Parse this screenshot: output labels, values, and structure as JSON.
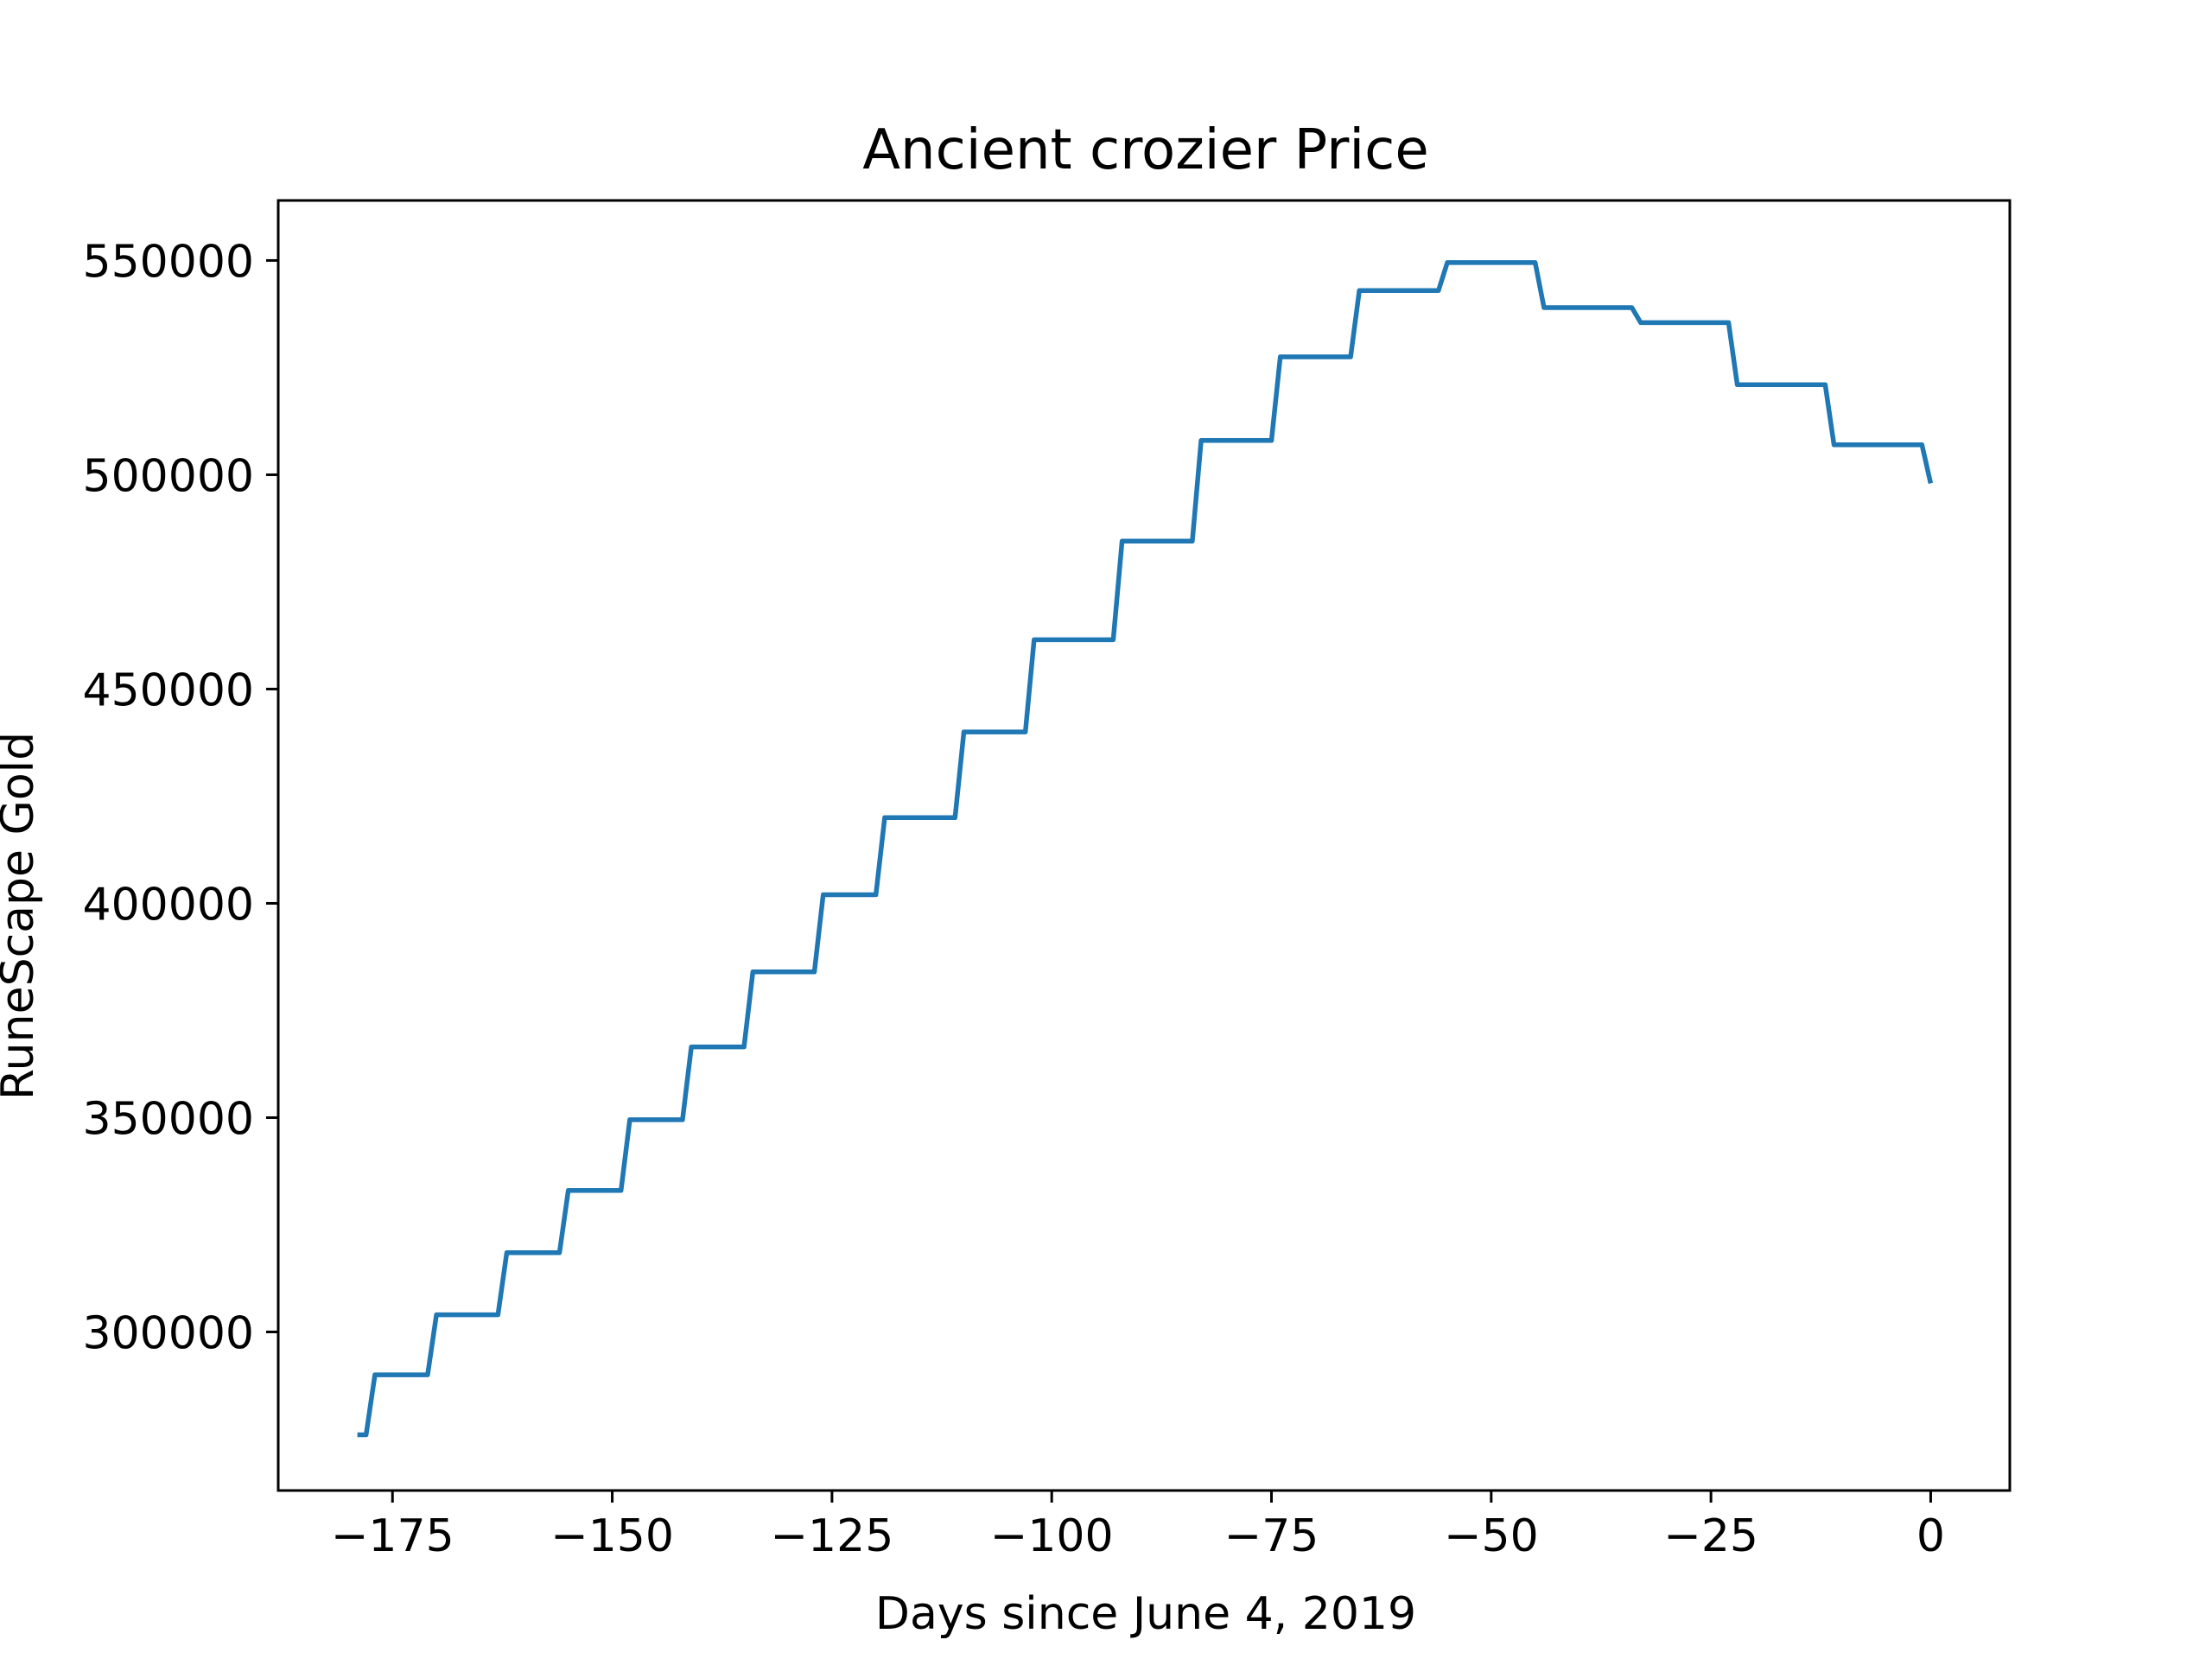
{
  "chart_data": {
    "type": "line",
    "title": "Ancient crozier Price",
    "xlabel": "Days since June 4, 2019",
    "ylabel": "RuneScape Gold",
    "xlim": [
      -188,
      9
    ],
    "ylim": [
      263000,
      564000
    ],
    "xticks": [
      -175,
      -150,
      -125,
      -100,
      -75,
      -50,
      -25,
      0
    ],
    "xtick_labels": [
      "−175",
      "−150",
      "−125",
      "−100",
      "−75",
      "−50",
      "−25",
      "0"
    ],
    "yticks": [
      300000,
      350000,
      400000,
      450000,
      500000,
      550000
    ],
    "ytick_labels": [
      "300000",
      "350000",
      "400000",
      "450000",
      "500000",
      "550000"
    ],
    "grid": false,
    "legend": "none",
    "series": [
      {
        "color": "#1f77b4",
        "x": [
          -179,
          -178,
          -177,
          -171,
          -170,
          -163,
          -162,
          -156,
          -155,
          -149,
          -148,
          -142,
          -141,
          -135,
          -134,
          -127,
          -126,
          -120,
          -119,
          -111,
          -110,
          -103,
          -102,
          -93,
          -92,
          -84,
          -83,
          -75,
          -74,
          -66,
          -65,
          -56,
          -55,
          -45,
          -44,
          -34,
          -33,
          -23,
          -22,
          -12,
          -11,
          -1,
          0
        ],
        "y": [
          276000,
          276000,
          290000,
          290000,
          304000,
          304000,
          318500,
          318500,
          333000,
          333000,
          349500,
          349500,
          366500,
          366500,
          384000,
          384000,
          402000,
          402000,
          420000,
          420000,
          440000,
          440000,
          461500,
          461500,
          484500,
          484500,
          508000,
          508000,
          527500,
          527500,
          543000,
          543000,
          549500,
          549500,
          539000,
          539000,
          535500,
          535500,
          521000,
          521000,
          507000,
          507000,
          498000
        ]
      }
    ]
  }
}
